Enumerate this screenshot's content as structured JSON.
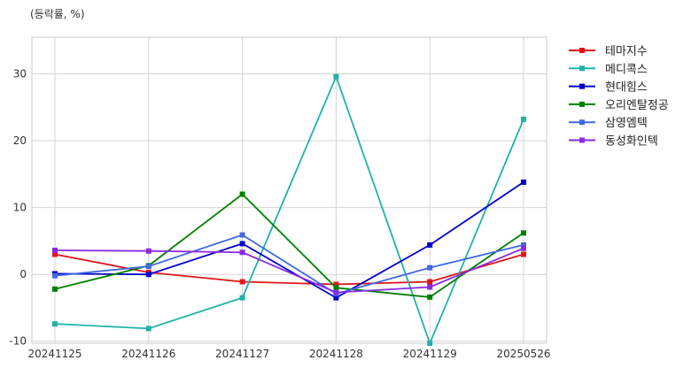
{
  "chart_data": {
    "type": "line",
    "unit_label": "(등락률, %)",
    "title": "",
    "xlabel": "",
    "ylabel": "",
    "categories": [
      "20241125",
      "20241126",
      "20241127",
      "20241128",
      "20241129",
      "20250526"
    ],
    "ylim": [
      -10.3,
      35.5
    ],
    "yticks": [
      -10,
      0,
      10,
      20,
      30
    ],
    "grid": true,
    "legend_position": "right",
    "series": [
      {
        "name": "테마지수",
        "color": "#e0161b",
        "values": [
          3.0,
          0.3,
          -1.1,
          -1.5,
          -1.1,
          3.0
        ]
      },
      {
        "name": "메디콕스",
        "color": "#20b2aa",
        "values": [
          -7.4,
          -8.1,
          -3.5,
          29.6,
          -10.3,
          23.2
        ]
      },
      {
        "name": "현대힘스",
        "color": "#0000cd",
        "values": [
          0.1,
          0.0,
          4.6,
          -3.5,
          4.4,
          13.8
        ]
      },
      {
        "name": "오리엔탈정공",
        "color": "#008000",
        "values": [
          -2.2,
          1.3,
          12.0,
          -2.0,
          -3.4,
          6.2
        ]
      },
      {
        "name": "삼영엠텍",
        "color": "#4169e1",
        "values": [
          -0.2,
          1.2,
          5.9,
          -2.9,
          1.0,
          4.4
        ]
      },
      {
        "name": "동성화인텍",
        "color": "#8a2be2",
        "values": [
          3.6,
          3.5,
          3.3,
          -2.7,
          -1.9,
          3.9
        ]
      }
    ]
  }
}
